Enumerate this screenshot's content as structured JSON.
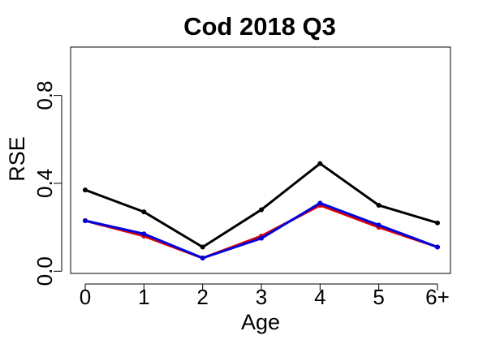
{
  "chart_data": {
    "type": "line",
    "title": "Cod 2018 Q3",
    "xlabel": "Age",
    "ylabel": "RSE",
    "categories": [
      "0",
      "1",
      "2",
      "3",
      "4",
      "5",
      "6+"
    ],
    "yticks": [
      "0.0",
      "0.4",
      "0.8"
    ],
    "ytick_values": [
      0.0,
      0.4,
      0.8
    ],
    "ylim": [
      -0.01,
      1.02
    ],
    "grid": false,
    "legend": "none",
    "series": [
      {
        "color": "#000000",
        "values": [
          0.37,
          0.27,
          0.11,
          0.28,
          0.49,
          0.3,
          0.22
        ]
      },
      {
        "color": "#dd0000",
        "values": [
          0.23,
          0.16,
          0.06,
          0.16,
          0.3,
          0.2,
          0.11
        ]
      },
      {
        "color": "#0000dd",
        "values": [
          0.23,
          0.17,
          0.06,
          0.15,
          0.31,
          0.21,
          0.11
        ]
      }
    ]
  }
}
